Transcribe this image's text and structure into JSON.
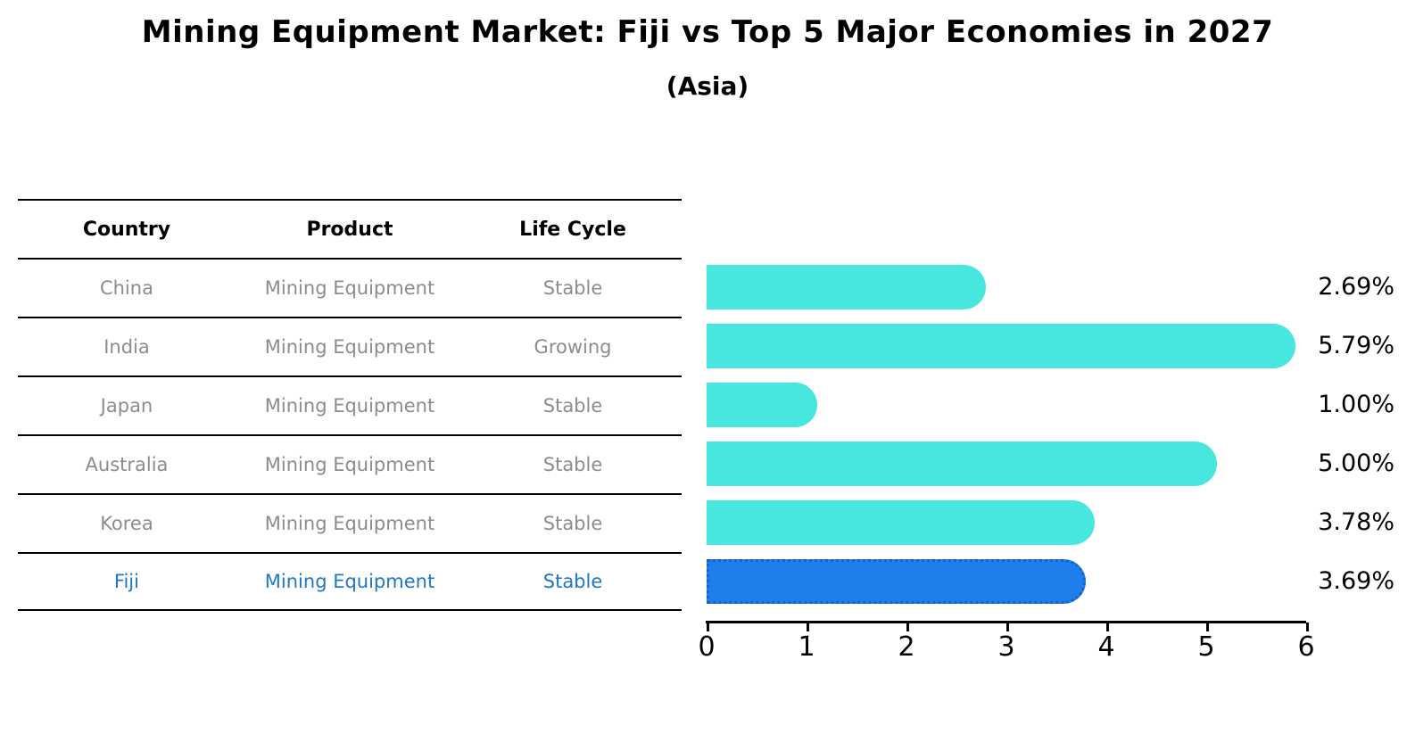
{
  "title": "Mining Equipment Market: Fiji vs Top 5 Major Economies in 2027",
  "subtitle": "(Asia)",
  "table": {
    "headers": [
      "Country",
      "Product",
      "Life Cycle"
    ],
    "rows": [
      {
        "country": "China",
        "product": "Mining Equipment",
        "life_cycle": "Stable",
        "highlight": false
      },
      {
        "country": "India",
        "product": "Mining Equipment",
        "life_cycle": "Growing",
        "highlight": false
      },
      {
        "country": "Japan",
        "product": "Mining Equipment",
        "life_cycle": "Stable",
        "highlight": false
      },
      {
        "country": "Australia",
        "product": "Mining Equipment",
        "life_cycle": "Stable",
        "highlight": false
      },
      {
        "country": "Korea",
        "product": "Mining Equipment",
        "life_cycle": "Stable",
        "highlight": false
      },
      {
        "country": "Fiji",
        "product": "Mining Equipment",
        "life_cycle": "Stable",
        "highlight": true
      }
    ]
  },
  "chart_data": {
    "type": "bar",
    "orientation": "horizontal",
    "title": "Mining Equipment Market: Fiji vs Top 5 Major Economies in 2027",
    "subtitle": "(Asia)",
    "categories": [
      "China",
      "India",
      "Japan",
      "Australia",
      "Korea",
      "Fiji"
    ],
    "values": [
      2.69,
      5.79,
      1.0,
      5.0,
      3.78,
      3.69
    ],
    "value_labels": [
      "2.69%",
      "5.79%",
      "1.00%",
      "5.00%",
      "3.78%",
      "3.69%"
    ],
    "xlim": [
      0,
      6
    ],
    "xticks": [
      "0",
      "1",
      "2",
      "3",
      "4",
      "5",
      "6"
    ],
    "grid": false,
    "legend": "none",
    "highlight_index": 5
  },
  "colors": {
    "bar": "#47E7E0",
    "highlight_bar": "#1E7FEC",
    "highlight_border": "#1A5FD0",
    "highlight_text": "#1F77C8",
    "text": "#000000",
    "muted_text": "#8c8c8c"
  }
}
